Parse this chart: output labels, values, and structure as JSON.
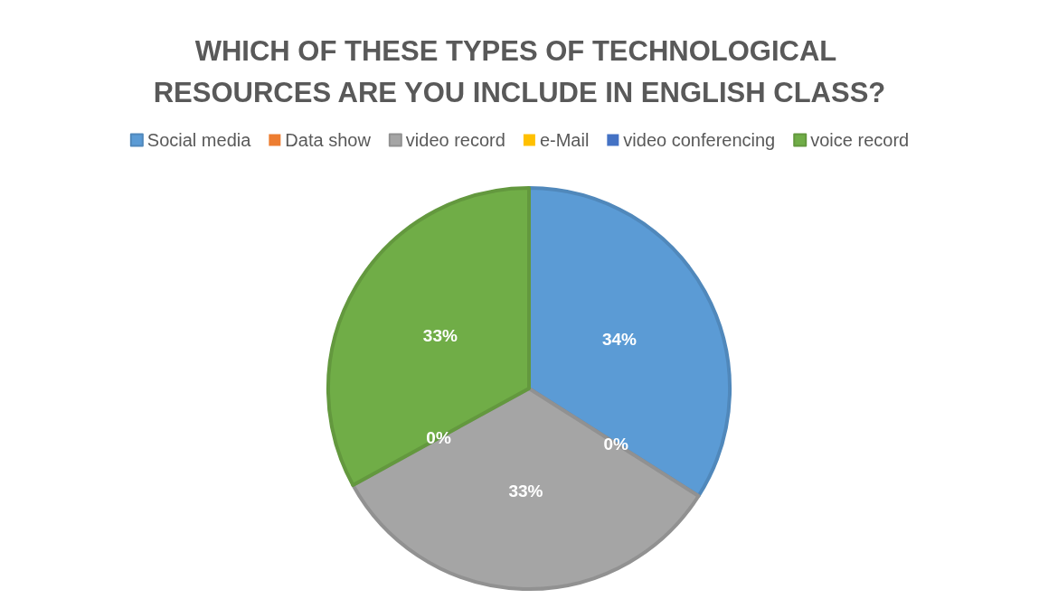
{
  "chart_data": {
    "type": "pie",
    "title": "WHICH OF THESE TYPES OF TECHNOLOGICAL RESOURCES ARE YOU INCLUDE IN ENGLISH CLASS?",
    "categories": [
      "Social media",
      "Data show",
      "video record",
      "e-Mail",
      "video conferencing",
      "voice record"
    ],
    "values": [
      34,
      0,
      33,
      0,
      0,
      33
    ],
    "colors": [
      "#5b9bd5",
      "#ed7d31",
      "#a5a5a5",
      "#ffc000",
      "#4472c4",
      "#70ad47"
    ],
    "value_labels": [
      "34%",
      "0%",
      "33%",
      "0%",
      null,
      "33%"
    ],
    "legend": "top"
  }
}
